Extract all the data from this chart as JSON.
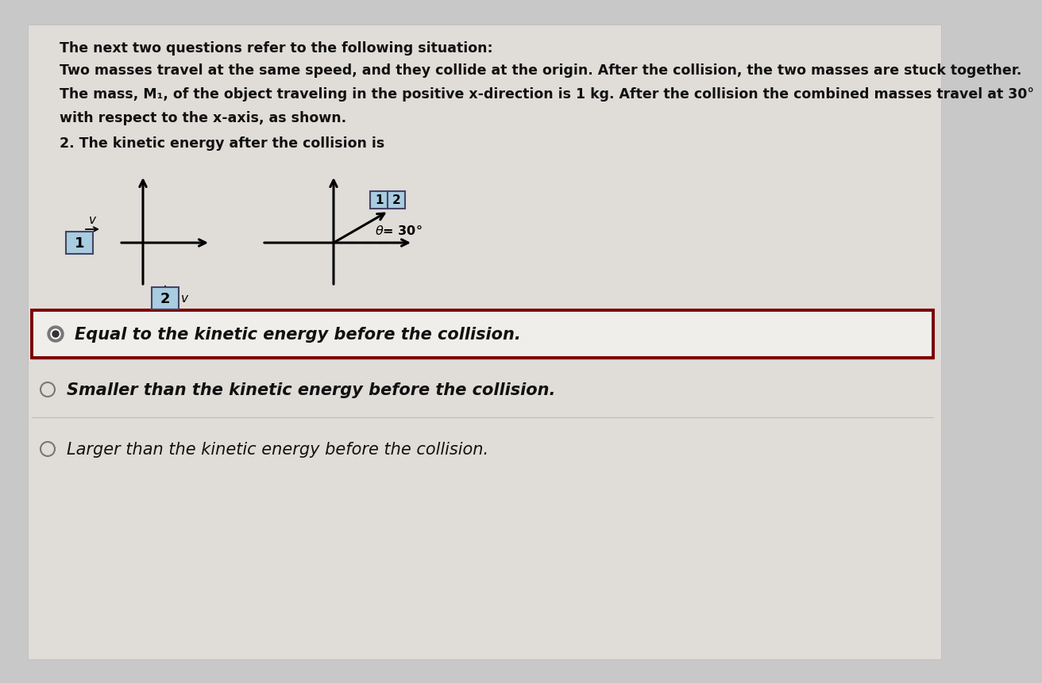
{
  "bg_color": "#c8c8c8",
  "paper_color": "#e0ddd8",
  "title": "The next two questions refer to the following situation:",
  "body_line1": "Two masses travel at the same speed, and they collide at the origin. After the collision, the two masses are stuck together.",
  "body_line2": "The mass, M₁, of the object traveling in the positive x-direction is 1 kg. After the collision the combined masses travel at 30°",
  "body_line3": "with respect to the x-axis, as shown.",
  "question": "2. The kinetic energy after the collision is",
  "option1": "Equal to the kinetic energy before the collision.",
  "option2": "Smaller than the kinetic energy before the collision.",
  "option3": "Larger than the kinetic energy before the collision.",
  "box_color": "#7a0000",
  "diagram_box_color": "#a8cce0",
  "text_color": "#111111",
  "radio_outer": "#777777",
  "radio_inner": "#333333"
}
